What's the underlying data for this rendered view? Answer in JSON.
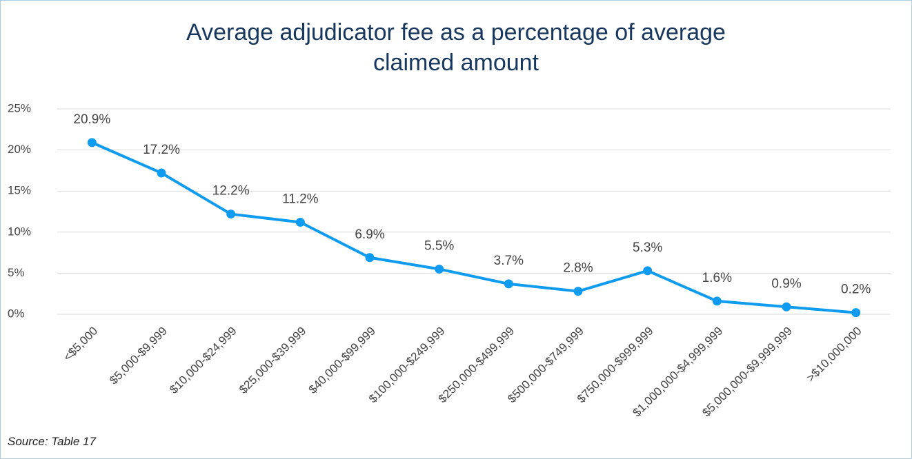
{
  "chart_data": {
    "type": "line",
    "title": "Average adjudicator fee as a percentage of average claimed amount",
    "source": "Source: Table 17",
    "categories": [
      "<$5,000",
      "$5,000-$9,999",
      "$10,000-$24,999",
      "$25,000-$39,999",
      "$40,000-$99,999",
      "$100,000-$249,999",
      "$250,000-$499,999",
      "$500,000-$749,999",
      "$750,000-$999,999",
      "$1,000,000-$4,999,999",
      "$5,000,000-$9,999,999",
      ">$10,000,000"
    ],
    "values": [
      20.9,
      17.2,
      12.2,
      11.2,
      6.9,
      5.5,
      3.7,
      2.8,
      5.3,
      1.6,
      0.9,
      0.2
    ],
    "value_labels": [
      "20.9%",
      "17.2%",
      "12.2%",
      "11.2%",
      "6.9%",
      "5.5%",
      "3.7%",
      "2.8%",
      "5.3%",
      "1.6%",
      "0.9%",
      "0.2%"
    ],
    "color": "#0f9bef",
    "ylim": [
      0,
      25
    ],
    "yticks": [
      {
        "value": 0,
        "label": "0%"
      },
      {
        "value": 5,
        "label": "5%"
      },
      {
        "value": 10,
        "label": "10%"
      },
      {
        "value": 15,
        "label": "15%"
      },
      {
        "value": 20,
        "label": "20%"
      },
      {
        "value": 25,
        "label": "25%"
      }
    ],
    "grid": true
  }
}
